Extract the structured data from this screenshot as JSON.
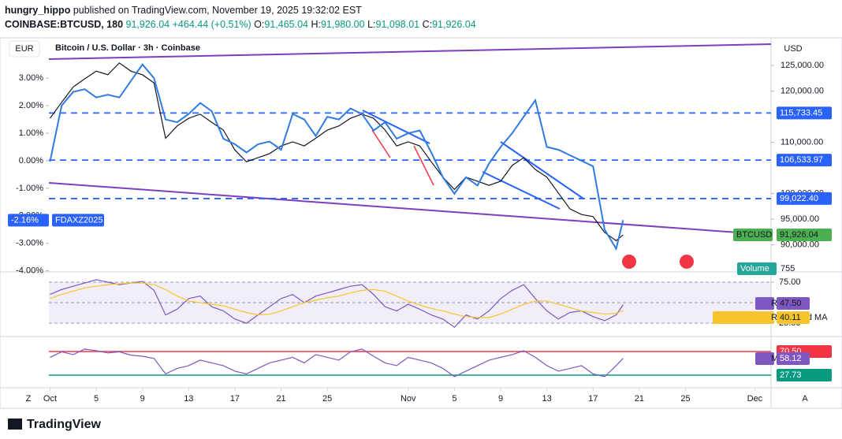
{
  "header": {
    "author": "hungry_hippo",
    "published": "published on TradingView.com, November 19, 2025 19:32:02 EST",
    "symbol": "COINBASE:BTCUSD, 180",
    "last": "91,926.04",
    "change": "+464.44 (+0.51%)",
    "ohlc": [
      {
        "label": "O:",
        "value": "91,465.04"
      },
      {
        "label": "H:",
        "value": "91,980.00"
      },
      {
        "label": "L:",
        "value": "91,098.01"
      },
      {
        "label": "C:",
        "value": "91,926.04"
      }
    ]
  },
  "chart_data": [
    {
      "type": "line",
      "title": "Bitcoin / U.S. Dollar · 3h · Coinbase",
      "left_currency": "EUR",
      "right_currency": "USD",
      "x": [
        0,
        1,
        2,
        3,
        4,
        5,
        6,
        7,
        8,
        9,
        10,
        11,
        12,
        13,
        14,
        15,
        16,
        17,
        18,
        19,
        20,
        21,
        22,
        23,
        24,
        25,
        26,
        27,
        28,
        29,
        30,
        31,
        32,
        33,
        34,
        35,
        36,
        37,
        38,
        39,
        40,
        41,
        42,
        43,
        44,
        45,
        46,
        47,
        48,
        49,
        49.6
      ],
      "xlim": [
        -0.1,
        62.2
      ],
      "xticks": [
        {
          "value": 0,
          "label": "Oct"
        },
        {
          "value": 4,
          "label": "5"
        },
        {
          "value": 8,
          "label": "9"
        },
        {
          "value": 12,
          "label": "13"
        },
        {
          "value": 16,
          "label": "17"
        },
        {
          "value": 20,
          "label": "21"
        },
        {
          "value": 24,
          "label": "25"
        },
        {
          "value": 31,
          "label": "Nov"
        },
        {
          "value": 35,
          "label": "5"
        },
        {
          "value": 39,
          "label": "9"
        },
        {
          "value": 43,
          "label": "13"
        },
        {
          "value": 47,
          "label": "17"
        },
        {
          "value": 51,
          "label": "21"
        },
        {
          "value": 55,
          "label": "25"
        },
        {
          "value": 61,
          "label": "Dec"
        }
      ],
      "ylim": [
        84700,
        130100
      ],
      "yticks": [
        {
          "value": 125000,
          "label": "125,000.00"
        },
        {
          "value": 120000,
          "label": "120,000.00"
        },
        {
          "value": 110000,
          "label": "110,000.00"
        },
        {
          "value": 100000,
          "label": "100,000.00"
        },
        {
          "value": 95000,
          "label": "95,000.00"
        },
        {
          "value": 90000,
          "label": "90,000.00"
        }
      ],
      "y2lim": [
        -4.04,
        4.41
      ],
      "y2ticks": [
        {
          "value": 3,
          "label": "3.00%"
        },
        {
          "value": 2,
          "label": "2.00%"
        },
        {
          "value": 1,
          "label": "1.00%"
        },
        {
          "value": 0,
          "label": "0.00%"
        },
        {
          "value": -1,
          "label": "-1.00%"
        },
        {
          "value": -2,
          "label": "-2.00%"
        },
        {
          "value": -3,
          "label": "-3.00%"
        },
        {
          "value": -4,
          "label": "-4.00%"
        }
      ],
      "series": [
        {
          "name": "BTCUSD",
          "color": "#131722",
          "last_label": "91,926.04",
          "values": [
            114700,
            117800,
            120800,
            122400,
            123900,
            123200,
            125500,
            123900,
            123200,
            121600,
            110800,
            113200,
            114700,
            115500,
            113900,
            112400,
            108500,
            106200,
            107000,
            107800,
            109300,
            110100,
            109300,
            110800,
            112400,
            113200,
            114700,
            115500,
            114700,
            112400,
            109300,
            110100,
            109300,
            106200,
            103200,
            100800,
            103200,
            102400,
            101600,
            102400,
            105500,
            107000,
            104700,
            103200,
            100100,
            97000,
            95900,
            95500,
            92400,
            90800,
            91926.04
          ]
        },
        {
          "name": "FDAXZ2025",
          "color": "#2f7be0",
          "axis": "y2",
          "last_label": "-2.16%",
          "values": [
            -0.03,
            2.0,
            2.5,
            2.6,
            2.3,
            2.4,
            2.3,
            2.9,
            3.5,
            3.0,
            1.5,
            1.4,
            1.7,
            2.1,
            1.8,
            0.8,
            0.6,
            0.3,
            0.6,
            0.7,
            0.4,
            1.7,
            1.5,
            0.9,
            1.6,
            1.5,
            1.9,
            1.7,
            1.1,
            1.4,
            0.8,
            1.0,
            1.1,
            0.3,
            -0.6,
            -1.2,
            -0.6,
            -0.9,
            -0.1,
            0.5,
            1.0,
            1.6,
            2.2,
            0.5,
            0.4,
            0.2,
            0.0,
            -0.2,
            -2.5,
            -3.2,
            -2.16
          ]
        }
      ],
      "levels": [
        {
          "value": 115733.45,
          "label": "115,733.45"
        },
        {
          "value": 106533.97,
          "label": "106,533.97"
        },
        {
          "value": 99022.4,
          "label": "99,022.40"
        }
      ],
      "volume": {
        "label": "Volume",
        "last_label": "755"
      }
    },
    {
      "type": "line",
      "ylim": [
        10.6,
        87.5
      ],
      "yticks": [
        {
          "value": 75,
          "label": "75.00"
        },
        {
          "value": 50,
          "label": "50.00"
        },
        {
          "value": 25,
          "label": "25.00"
        }
      ],
      "series": [
        {
          "name": "RSI",
          "color": "#7e57c2",
          "last_label": "47.50",
          "values": [
            60,
            66,
            70,
            74,
            78,
            75,
            72,
            74,
            76,
            65,
            35,
            42,
            55,
            58,
            45,
            40,
            30,
            25,
            35,
            45,
            55,
            60,
            50,
            58,
            62,
            66,
            70,
            72,
            60,
            45,
            40,
            48,
            42,
            35,
            30,
            20,
            35,
            30,
            40,
            55,
            65,
            72,
            55,
            40,
            30,
            38,
            40,
            33,
            28,
            35,
            47.5
          ]
        },
        {
          "name": "RSI-based MA",
          "color": "#f7c52b",
          "last_label": "40.11",
          "values": [
            55,
            60,
            64,
            68,
            70,
            72,
            73,
            74,
            74,
            72,
            66,
            58,
            52,
            50,
            48,
            46,
            42,
            38,
            35,
            36,
            40,
            45,
            50,
            53,
            56,
            58,
            62,
            65,
            66,
            64,
            58,
            52,
            47,
            43,
            40,
            36,
            33,
            32,
            32,
            36,
            42,
            48,
            52,
            52,
            48,
            44,
            40,
            38,
            36,
            37,
            40.11
          ]
        }
      ]
    },
    {
      "type": "line",
      "ylim": [
        7.7,
        96.3
      ],
      "series": [
        {
          "name": "MF",
          "color": "#7e57c2",
          "last_label": "58.12",
          "values": [
            60,
            70,
            65,
            75,
            72,
            68,
            70,
            64,
            62,
            58,
            30,
            40,
            45,
            55,
            50,
            45,
            35,
            30,
            40,
            50,
            55,
            60,
            50,
            65,
            60,
            55,
            70,
            75,
            62,
            50,
            45,
            60,
            55,
            50,
            40,
            25,
            35,
            45,
            55,
            60,
            65,
            72,
            60,
            45,
            35,
            40,
            45,
            30,
            25,
            45,
            58.12
          ]
        }
      ],
      "levels": [
        {
          "value": 70.5,
          "label": "70.50",
          "color": "#f23645"
        },
        {
          "value": 27.73,
          "label": "27.73",
          "color": "#089981"
        }
      ]
    }
  ],
  "footer": {
    "left_button": "Z",
    "right_button": "A",
    "brand": "TradingView"
  }
}
